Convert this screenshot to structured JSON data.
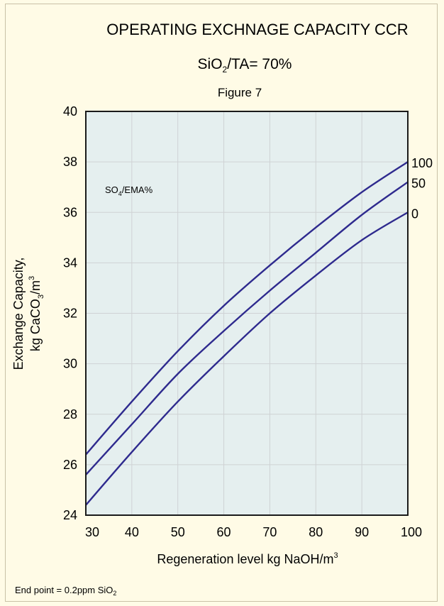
{
  "chart_data": {
    "type": "line",
    "title": "OPERATING EXCHNAGE CAPACITY CCR",
    "subtitle": {
      "prefix": "SiO",
      "sub": "2",
      "suffix": "/TA= 70%"
    },
    "figure_label": "Figure 7",
    "xlabel": {
      "text": "Regeneration level kg NaOH/m",
      "sup": "3"
    },
    "ylabel": {
      "line1": "Exchange Capacity,",
      "line2_prefix": "kg CaCO",
      "line2_sub": "3",
      "line2_suffix": "/m",
      "line2_sup": "3"
    },
    "xlim": [
      30,
      100
    ],
    "ylim": [
      24,
      40
    ],
    "x_ticks": [
      "30",
      "40",
      "50",
      "60",
      "70",
      "80",
      "90",
      "100"
    ],
    "y_ticks": [
      "24",
      "26",
      "28",
      "30",
      "32",
      "34",
      "36",
      "38",
      "40"
    ],
    "grid": true,
    "legend_title": {
      "prefix": "SO",
      "sub": "4",
      "suffix": "/EMA%"
    },
    "series": [
      {
        "name": "100",
        "x": [
          30,
          40,
          50,
          60,
          70,
          80,
          90,
          100
        ],
        "y": [
          26.4,
          28.5,
          30.5,
          32.3,
          33.9,
          35.4,
          36.8,
          38.0
        ]
      },
      {
        "name": "50",
        "x": [
          30,
          40,
          50,
          60,
          70,
          80,
          90,
          100
        ],
        "y": [
          25.6,
          27.6,
          29.6,
          31.3,
          32.9,
          34.4,
          35.9,
          37.2
        ]
      },
      {
        "name": "0",
        "x": [
          30,
          40,
          50,
          60,
          70,
          80,
          90,
          100
        ],
        "y": [
          24.4,
          26.5,
          28.5,
          30.3,
          32.0,
          33.5,
          34.9,
          36.0
        ]
      }
    ],
    "footnote": {
      "prefix": "End point = 0.2ppm SiO",
      "sub": "2"
    },
    "colors": {
      "line": "#2e2a8e",
      "plot_bg": "#e5efef",
      "page_bg": "#fffbe6",
      "grid": "#cfd2d4",
      "axis": "#1a1a1a"
    }
  }
}
